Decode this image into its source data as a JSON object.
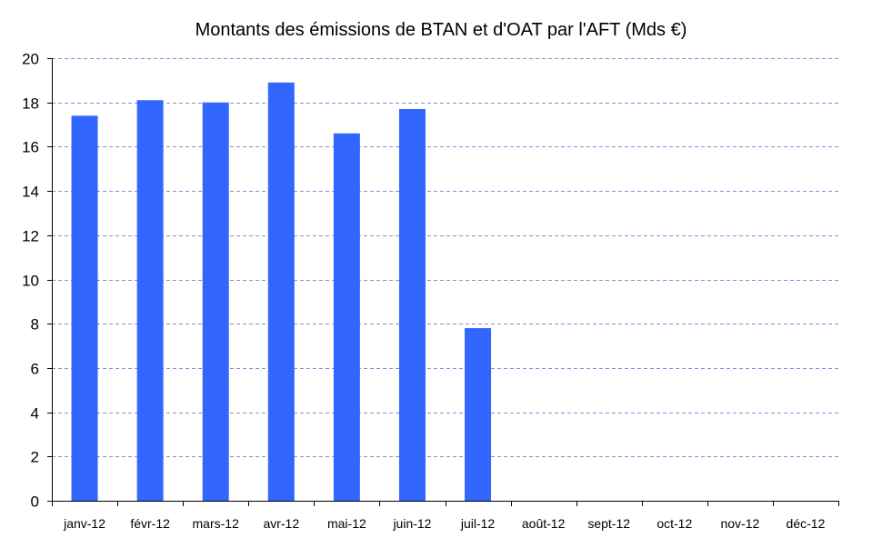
{
  "chart_data": {
    "type": "bar",
    "title": "Montants des émissions de BTAN et d'OAT par l'AFT (Mds €)",
    "xlabel": "",
    "ylabel": "",
    "categories": [
      "janv-12",
      "févr-12",
      "mars-12",
      "avr-12",
      "mai-12",
      "juin-12",
      "juil-12",
      "août-12",
      "sept-12",
      "oct-12",
      "nov-12",
      "déc-12"
    ],
    "values": [
      17.4,
      18.1,
      18.0,
      18.9,
      16.6,
      17.7,
      7.8,
      0,
      0,
      0,
      0,
      0
    ],
    "ylim": [
      0,
      20
    ],
    "yticks": [
      0,
      2,
      4,
      6,
      8,
      10,
      12,
      14,
      16,
      18,
      20
    ],
    "grid": true,
    "legend": "none",
    "colors": {
      "bar": "#3366FF",
      "grid": "#8C8CD9",
      "axis": "#000000"
    }
  }
}
